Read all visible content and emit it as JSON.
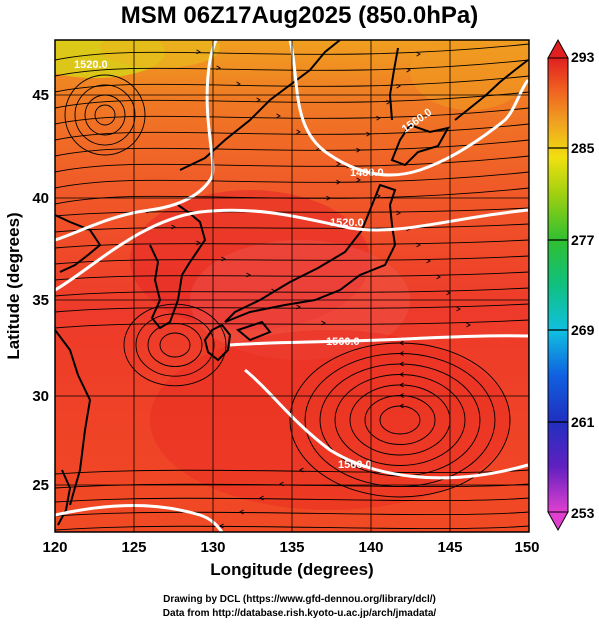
{
  "title": "MSM 06Z17Aug2025 (850.0hPa)",
  "x_axis": {
    "label": "Longitude (degrees)",
    "range": [
      120,
      150
    ],
    "ticks": [
      "120",
      "125",
      "130",
      "135",
      "140",
      "145",
      "150"
    ]
  },
  "y_axis": {
    "label": "Latitude  (degrees)",
    "range": [
      22.4,
      47.6
    ],
    "ticks": [
      "25",
      "30",
      "35",
      "40",
      "45"
    ]
  },
  "colorbar": {
    "ticks": [
      "293",
      "285",
      "277",
      "269",
      "261",
      "253"
    ],
    "range": [
      253,
      293
    ],
    "colors": [
      "#e040d0",
      "#3020c0",
      "#1060e0",
      "#10c0e0",
      "#10c060",
      "#60d010",
      "#e0e010",
      "#f0a020",
      "#f06020",
      "#e02020"
    ]
  },
  "contour_labels": [
    "1520.0",
    "1480.0",
    "1520.0",
    "1560.0",
    "1560.0",
    "1560.0"
  ],
  "footer": {
    "line1": "Drawing by DCL (https://www.gfd-dennou.org/library/dcl/)",
    "line2": "Data from http://database.rish.kyoto-u.ac.jp/arch/jmadata/"
  }
}
